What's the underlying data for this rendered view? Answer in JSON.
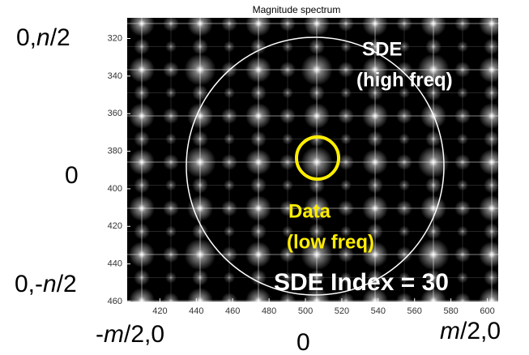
{
  "chart_data": {
    "type": "image",
    "title": "Magnitude spectrum",
    "xlim": [
      402,
      606
    ],
    "ylim": [
      309,
      460
    ],
    "y_reversed": true,
    "xticks": [
      420,
      440,
      460,
      480,
      500,
      520,
      540,
      560,
      580,
      600
    ],
    "yticks": [
      320,
      340,
      360,
      380,
      400,
      420,
      440,
      460
    ],
    "annotations": [
      {
        "text": "SDE",
        "color": "#ffffff"
      },
      {
        "text": "(high freq)",
        "color": "#ffffff"
      },
      {
        "text": "Data",
        "color": "#ffee00"
      },
      {
        "text": "(low freq)",
        "color": "#ffee00"
      },
      {
        "text": "SDE Index = 30",
        "color": "#ffffff"
      }
    ],
    "row_labels": [
      [
        "0,",
        "n",
        "/2"
      ],
      [
        "0"
      ],
      [
        "0,-",
        "n",
        "/2"
      ]
    ],
    "column_labels": [
      [
        "-",
        "m",
        "/2,0"
      ],
      [
        "0"
      ],
      [
        "m",
        "/2,0"
      ]
    ]
  }
}
